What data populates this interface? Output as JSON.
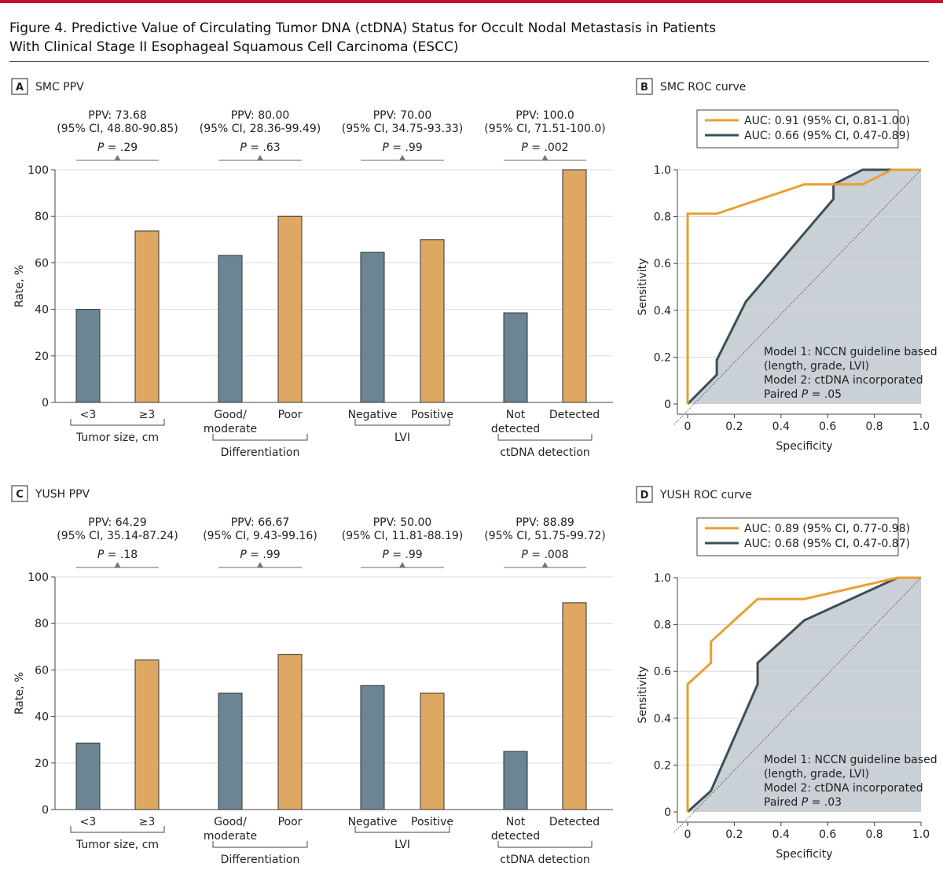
{
  "figure": {
    "title_line1": "Figure 4. Predictive Value of Circulating Tumor DNA (ctDNA) Status for Occult Nodal Metastasis in Patients",
    "title_line2": "With Clinical Stage II Esophageal Squamous Cell Carcinoma (ESCC)"
  },
  "colors": {
    "accent_bar": "#c8102e",
    "group1": "#6b8593",
    "group2": "#dea862",
    "roc_model2": "#e8a033",
    "roc_model1": "#3d4f58",
    "roc_fill": "#c9d0d6"
  },
  "chart_data": [
    {
      "panel": "A",
      "type": "bar",
      "title": "SMC PPV",
      "ylabel": "Rate, %",
      "ylim": [
        0,
        100
      ],
      "yticks": [
        0,
        20,
        40,
        60,
        80,
        100
      ],
      "grid": true,
      "groups": [
        {
          "label": "Tumor size, cm",
          "ppv": "PPV: 73.68",
          "ci": "(95% CI, 48.80-90.85)",
          "p": ".29",
          "categories": [
            [
              "<3"
            ],
            [
              "≥3"
            ]
          ],
          "values": [
            40.0,
            73.68
          ]
        },
        {
          "label": "Differentiation",
          "ppv": "PPV: 80.00",
          "ci": "(95% CI, 28.36-99.49)",
          "p": ".63",
          "categories": [
            [
              "Good/",
              "moderate"
            ],
            [
              "Poor"
            ]
          ],
          "values": [
            63.2,
            80.0
          ]
        },
        {
          "label": "LVI",
          "ppv": "PPV: 70.00",
          "ci": "(95% CI, 34.75-93.33)",
          "p": ".99",
          "categories": [
            [
              "Negative"
            ],
            [
              "Positive"
            ]
          ],
          "values": [
            64.5,
            70.0
          ]
        },
        {
          "label": "ctDNA detection",
          "ppv": "PPV: 100.0",
          "ci": "(95% CI, 71.51-100.0)",
          "p": ".002",
          "categories": [
            [
              "Not",
              "detected"
            ],
            [
              "Detected"
            ]
          ],
          "values": [
            38.5,
            100.0
          ]
        }
      ]
    },
    {
      "panel": "B",
      "type": "line",
      "title": "SMC ROC curve",
      "xlabel": "Specificity",
      "ylabel": "Sensitivity",
      "xlim": [
        0,
        1
      ],
      "ylim": [
        0,
        1
      ],
      "ticks": [
        "0",
        "0.2",
        "0.4",
        "0.6",
        "0.8",
        "1.0"
      ],
      "grid": true,
      "legend": "top",
      "series": [
        {
          "name": "AUC: 0.91 (95% CI, 0.81-1.00)",
          "x": [
            0,
            0,
            0.125,
            0.5,
            0.75,
            0.875,
            1.0
          ],
          "y": [
            0,
            0.8125,
            0.8125,
            0.9375,
            0.9375,
            1.0,
            1.0
          ]
        },
        {
          "name": "AUC: 0.66 (95% CI, 0.47-0.89)",
          "x": [
            0,
            0.125,
            0.125,
            0.25,
            0.625,
            0.625,
            0.75,
            1.0
          ],
          "y": [
            0,
            0.125,
            0.1875,
            0.4375,
            0.875,
            0.9375,
            1.0,
            1.0
          ]
        }
      ],
      "annotation": [
        "Model 1: NCCN guideline based",
        "(length, grade, LVI)",
        "Model 2: ctDNA incorporated",
        "Paired P = .05"
      ]
    },
    {
      "panel": "C",
      "type": "bar",
      "title": "YUSH PPV",
      "ylabel": "Rate, %",
      "ylim": [
        0,
        100
      ],
      "yticks": [
        0,
        20,
        40,
        60,
        80,
        100
      ],
      "grid": true,
      "groups": [
        {
          "label": "Tumor size, cm",
          "ppv": "PPV: 64.29",
          "ci": "(95% CI, 35.14-87.24)",
          "p": ".18",
          "categories": [
            [
              "<3"
            ],
            [
              "≥3"
            ]
          ],
          "values": [
            28.6,
            64.29
          ]
        },
        {
          "label": "Differentiation",
          "ppv": "PPV: 66.67",
          "ci": "(95% CI, 9.43-99.16)",
          "p": ".99",
          "categories": [
            [
              "Good/",
              "moderate"
            ],
            [
              "Poor"
            ]
          ],
          "values": [
            50.0,
            66.67
          ]
        },
        {
          "label": "LVI",
          "ppv": "PPV: 50.00",
          "ci": "(95% CI, 11.81-88.19)",
          "p": ".99",
          "categories": [
            [
              "Negative"
            ],
            [
              "Positive"
            ]
          ],
          "values": [
            53.3,
            50.0
          ]
        },
        {
          "label": "ctDNA detection",
          "ppv": "PPV: 88.89",
          "ci": "(95% CI, 51.75-99.72)",
          "p": ".008",
          "categories": [
            [
              "Not",
              "detected"
            ],
            [
              "Detected"
            ]
          ],
          "values": [
            25.0,
            88.89
          ]
        }
      ]
    },
    {
      "panel": "D",
      "type": "line",
      "title": "YUSH ROC curve",
      "xlabel": "Specificity",
      "ylabel": "Sensitivity",
      "xlim": [
        0,
        1
      ],
      "ylim": [
        0,
        1
      ],
      "ticks": [
        "0",
        "0.2",
        "0.4",
        "0.6",
        "0.8",
        "1.0"
      ],
      "grid": true,
      "legend": "top",
      "series": [
        {
          "name": "AUC: 0.89 (95% CI, 0.77-0.98)",
          "x": [
            0,
            0,
            0.1,
            0.1,
            0.3,
            0.5,
            0.9,
            1.0
          ],
          "y": [
            0,
            0.545,
            0.636,
            0.727,
            0.909,
            0.909,
            1.0,
            1.0
          ]
        },
        {
          "name": "AUC: 0.68 (95% CI, 0.47-0.87)",
          "x": [
            0,
            0.1,
            0.3,
            0.3,
            0.5,
            0.9,
            1.0
          ],
          "y": [
            0,
            0.09,
            0.545,
            0.636,
            0.818,
            1.0,
            1.0
          ]
        }
      ],
      "annotation": [
        "Model 1: NCCN guideline based",
        "(length, grade, LVI)",
        "Model 2: ctDNA incorporated",
        "Paired P = .03"
      ]
    }
  ]
}
